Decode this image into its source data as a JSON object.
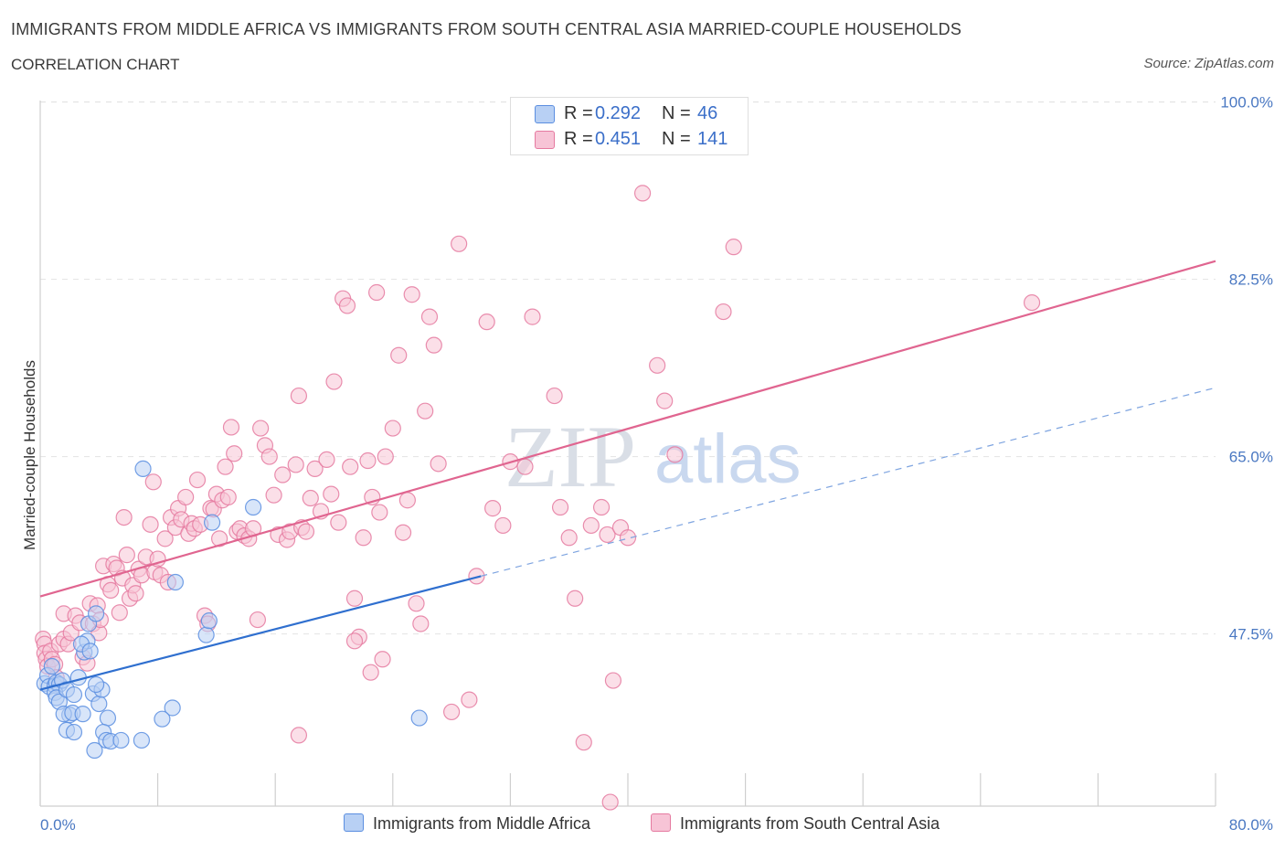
{
  "header": {
    "title": "IMMIGRANTS FROM MIDDLE AFRICA VS IMMIGRANTS FROM SOUTH CENTRAL ASIA MARRIED-COUPLE HOUSEHOLDS",
    "subtitle": "CORRELATION CHART",
    "source": "Source: ZipAtlas.com"
  },
  "watermark": {
    "zip": "ZIP",
    "atlas": "atlas"
  },
  "legend_top": {
    "r_label": "R =",
    "n_label": "N =",
    "rows": [
      {
        "r": "0.292",
        "n": "46"
      },
      {
        "r": "0.451",
        "n": "141"
      }
    ]
  },
  "chart_data": {
    "type": "scatter",
    "xlabel": "",
    "ylabel": "Married-couple Households",
    "xlim": [
      0,
      80
    ],
    "ylim": [
      30.5,
      101.5
    ],
    "x_tick_labels": [
      "0.0%",
      "80.0%"
    ],
    "y_ticks": [
      100.0,
      82.5,
      65.0,
      47.5
    ],
    "y_tick_labels": [
      "100.0%",
      "82.5%",
      "65.0%",
      "47.5%"
    ],
    "grid": "horizontal-dashed",
    "legend_position": "top-center",
    "series": [
      {
        "name": "Immigrants from Middle Africa",
        "color": "#5b8ee0",
        "fill": "#b8d0f4",
        "r": 0.292,
        "n": 46,
        "trend": {
          "x0": 0,
          "y0": 42.0,
          "x1": 30,
          "y1": 53.2,
          "dash_to_x": 80,
          "dash_y1": 71.8
        },
        "points": [
          [
            0.3,
            42.6
          ],
          [
            0.5,
            43.4
          ],
          [
            0.6,
            42.3
          ],
          [
            0.8,
            44.3
          ],
          [
            1.0,
            42.4
          ],
          [
            1.1,
            42.7
          ],
          [
            1.3,
            42.5
          ],
          [
            1.0,
            41.7
          ],
          [
            1.5,
            42.9
          ],
          [
            1.1,
            41.2
          ],
          [
            1.3,
            40.8
          ],
          [
            1.8,
            42.0
          ],
          [
            2.0,
            39.5
          ],
          [
            1.6,
            39.6
          ],
          [
            2.2,
            39.7
          ],
          [
            1.8,
            38.0
          ],
          [
            2.3,
            37.8
          ],
          [
            2.3,
            41.5
          ],
          [
            2.9,
            39.6
          ],
          [
            2.6,
            43.2
          ],
          [
            3.0,
            45.7
          ],
          [
            3.2,
            46.8
          ],
          [
            2.8,
            46.5
          ],
          [
            3.3,
            48.5
          ],
          [
            3.8,
            49.5
          ],
          [
            3.6,
            41.6
          ],
          [
            4.0,
            40.6
          ],
          [
            4.2,
            42.0
          ],
          [
            3.8,
            42.5
          ],
          [
            4.6,
            39.2
          ],
          [
            4.3,
            37.8
          ],
          [
            4.5,
            37.0
          ],
          [
            3.7,
            36.0
          ],
          [
            4.8,
            36.9
          ],
          [
            5.5,
            37.0
          ],
          [
            3.4,
            45.8
          ],
          [
            7.0,
            63.8
          ],
          [
            9.0,
            40.2
          ],
          [
            8.3,
            39.1
          ],
          [
            9.2,
            52.6
          ],
          [
            11.3,
            47.4
          ],
          [
            11.5,
            48.8
          ],
          [
            11.7,
            58.5
          ],
          [
            14.5,
            60.0
          ],
          [
            25.8,
            39.2
          ],
          [
            6.9,
            37.0
          ]
        ]
      },
      {
        "name": "Immigrants from South Central Asia",
        "color": "#e57aa0",
        "fill": "#f7c4d6",
        "r": 0.451,
        "n": 141,
        "trend": {
          "x0": 0,
          "y0": 51.2,
          "x1": 80,
          "y1": 84.3
        },
        "points": [
          [
            0.2,
            47.0
          ],
          [
            0.3,
            46.5
          ],
          [
            0.3,
            45.6
          ],
          [
            0.4,
            45.0
          ],
          [
            0.5,
            44.3
          ],
          [
            0.7,
            45.8
          ],
          [
            0.8,
            45.0
          ],
          [
            1.0,
            44.5
          ],
          [
            1.1,
            43.2
          ],
          [
            1.3,
            46.5
          ],
          [
            1.6,
            47.0
          ],
          [
            1.6,
            49.5
          ],
          [
            1.9,
            46.5
          ],
          [
            2.1,
            47.6
          ],
          [
            2.4,
            49.3
          ],
          [
            2.7,
            48.6
          ],
          [
            2.9,
            45.2
          ],
          [
            3.2,
            44.6
          ],
          [
            3.4,
            50.5
          ],
          [
            3.6,
            48.5
          ],
          [
            3.9,
            50.3
          ],
          [
            4.0,
            47.6
          ],
          [
            4.1,
            48.9
          ],
          [
            4.3,
            54.2
          ],
          [
            4.6,
            52.4
          ],
          [
            4.8,
            51.8
          ],
          [
            5.0,
            54.4
          ],
          [
            5.2,
            54.0
          ],
          [
            5.4,
            49.6
          ],
          [
            5.6,
            53.0
          ],
          [
            5.7,
            59.0
          ],
          [
            5.9,
            55.3
          ],
          [
            6.1,
            51.0
          ],
          [
            6.3,
            52.3
          ],
          [
            6.5,
            51.5
          ],
          [
            6.7,
            53.9
          ],
          [
            6.9,
            53.3
          ],
          [
            7.2,
            55.1
          ],
          [
            7.5,
            58.3
          ],
          [
            7.7,
            62.5
          ],
          [
            7.8,
            53.6
          ],
          [
            8.0,
            54.9
          ],
          [
            8.2,
            53.3
          ],
          [
            8.5,
            56.9
          ],
          [
            8.7,
            52.6
          ],
          [
            8.9,
            59.0
          ],
          [
            9.2,
            58.0
          ],
          [
            9.4,
            59.9
          ],
          [
            9.6,
            58.8
          ],
          [
            9.9,
            61.0
          ],
          [
            10.1,
            57.4
          ],
          [
            10.3,
            58.4
          ],
          [
            10.5,
            57.9
          ],
          [
            10.7,
            62.7
          ],
          [
            10.9,
            58.3
          ],
          [
            11.2,
            49.3
          ],
          [
            11.4,
            48.5
          ],
          [
            11.6,
            59.9
          ],
          [
            11.8,
            59.8
          ],
          [
            12.0,
            61.3
          ],
          [
            12.2,
            56.9
          ],
          [
            12.4,
            60.7
          ],
          [
            12.6,
            64.0
          ],
          [
            12.8,
            61.0
          ],
          [
            13.0,
            67.9
          ],
          [
            13.2,
            65.3
          ],
          [
            13.4,
            57.6
          ],
          [
            13.6,
            57.9
          ],
          [
            13.9,
            57.2
          ],
          [
            14.2,
            56.9
          ],
          [
            14.5,
            57.9
          ],
          [
            14.8,
            48.9
          ],
          [
            15.0,
            67.8
          ],
          [
            15.3,
            66.1
          ],
          [
            15.6,
            65.0
          ],
          [
            15.9,
            61.2
          ],
          [
            16.2,
            57.3
          ],
          [
            16.5,
            63.2
          ],
          [
            16.8,
            56.8
          ],
          [
            17.0,
            57.6
          ],
          [
            17.4,
            64.2
          ],
          [
            17.6,
            71.0
          ],
          [
            17.8,
            58.0
          ],
          [
            18.1,
            57.6
          ],
          [
            18.4,
            60.9
          ],
          [
            18.7,
            63.8
          ],
          [
            19.1,
            59.6
          ],
          [
            19.5,
            64.7
          ],
          [
            19.8,
            61.3
          ],
          [
            20.0,
            72.4
          ],
          [
            20.3,
            58.5
          ],
          [
            20.6,
            80.6
          ],
          [
            20.9,
            79.9
          ],
          [
            21.1,
            64.0
          ],
          [
            21.4,
            51.0
          ],
          [
            21.7,
            47.2
          ],
          [
            22.0,
            57.0
          ],
          [
            22.3,
            64.6
          ],
          [
            22.6,
            61.0
          ],
          [
            22.9,
            81.2
          ],
          [
            23.1,
            59.5
          ],
          [
            23.3,
            45.0
          ],
          [
            23.5,
            65.0
          ],
          [
            24.0,
            67.8
          ],
          [
            24.4,
            75.0
          ],
          [
            24.7,
            57.5
          ],
          [
            25.0,
            60.7
          ],
          [
            25.3,
            81.0
          ],
          [
            25.6,
            50.5
          ],
          [
            25.9,
            48.5
          ],
          [
            26.2,
            69.5
          ],
          [
            26.5,
            78.8
          ],
          [
            26.8,
            76.0
          ],
          [
            27.1,
            64.3
          ],
          [
            28.0,
            39.8
          ],
          [
            28.5,
            86.0
          ],
          [
            29.2,
            41.0
          ],
          [
            29.7,
            53.2
          ],
          [
            30.4,
            78.3
          ],
          [
            30.8,
            59.9
          ],
          [
            31.5,
            58.2
          ],
          [
            32.0,
            64.5
          ],
          [
            33.0,
            64.0
          ],
          [
            33.5,
            78.8
          ],
          [
            35.0,
            71.0
          ],
          [
            35.4,
            60.0
          ],
          [
            36.0,
            57.0
          ],
          [
            36.4,
            51.0
          ],
          [
            37.5,
            58.2
          ],
          [
            38.2,
            60.0
          ],
          [
            38.6,
            57.3
          ],
          [
            39.0,
            42.9
          ],
          [
            39.5,
            58.0
          ],
          [
            40.0,
            57.0
          ],
          [
            41.0,
            91.0
          ],
          [
            42.0,
            74.0
          ],
          [
            42.5,
            70.5
          ],
          [
            43.2,
            65.2
          ],
          [
            46.5,
            79.3
          ],
          [
            47.2,
            85.7
          ],
          [
            67.5,
            80.2
          ],
          [
            37.0,
            36.8
          ],
          [
            38.8,
            30.9
          ],
          [
            17.6,
            37.5
          ],
          [
            22.5,
            43.7
          ],
          [
            21.4,
            46.8
          ]
        ]
      }
    ]
  },
  "bottom_legend": {
    "items": [
      {
        "label": "Immigrants from Middle Africa"
      },
      {
        "label": "Immigrants from South Central Asia"
      }
    ]
  }
}
